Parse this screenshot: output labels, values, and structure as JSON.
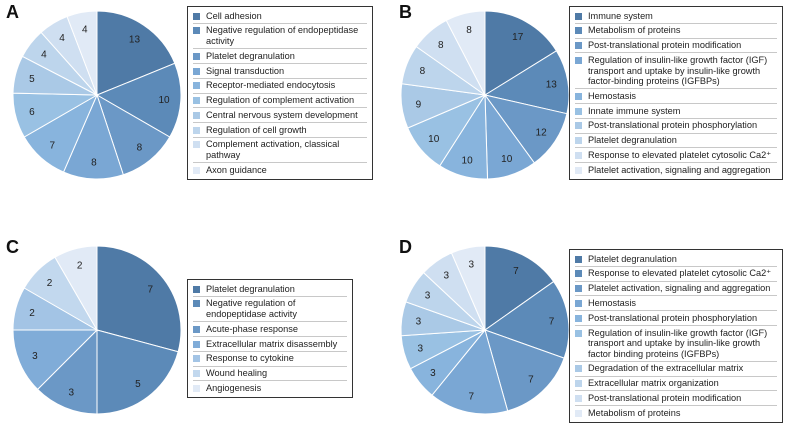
{
  "chart_data": [
    {
      "type": "pie",
      "panel": "A",
      "categories": [
        "Cell adhesion",
        "Negative regulation of endopeptidase activity",
        "Platelet degranulation",
        "Signal transduction",
        "Receptor-mediated endocytosis",
        "Regulation of complement activation",
        "Central nervous system development",
        "Regulation of cell growth",
        "Complement activation, classical pathway",
        "Axon guidance"
      ],
      "values": [
        13,
        10,
        8,
        8,
        7,
        6,
        5,
        4,
        4,
        4
      ],
      "colors": [
        "#4f7aa6",
        "#5c8ab8",
        "#6b98c6",
        "#7aa7d4",
        "#88b4dd",
        "#99c1e3",
        "#aac9e6",
        "#bdd5ec",
        "#cfdff1",
        "#e1eaf6"
      ]
    },
    {
      "type": "pie",
      "panel": "B",
      "categories": [
        "Immune system",
        "Metabolism of proteins",
        "Post-translational protein modification",
        "Regulation of insulin-like growth factor (IGF) transport and uptake by insulin-like growth factor-binding proteins (IGFBPs)",
        "Hemostasis",
        "Innate immune system",
        "Post-translational protein phosphorylation",
        "Platelet degranulation",
        "Response to elevated platelet cytosolic Ca2⁺",
        "Platelet activation, signaling and aggregation"
      ],
      "values": [
        17,
        13,
        12,
        10,
        10,
        10,
        9,
        8,
        8,
        8
      ],
      "colors": [
        "#4f7aa6",
        "#5c8ab8",
        "#6b98c6",
        "#7aa7d4",
        "#88b4dd",
        "#99c1e3",
        "#aac9e6",
        "#bdd5ec",
        "#cfdff1",
        "#e1eaf6"
      ]
    },
    {
      "type": "pie",
      "panel": "C",
      "categories": [
        "Platelet degranulation",
        "Negative regulation of endopeptidase activity",
        "Acute-phase response",
        "Extracellular matrix disassembly",
        "Response to cytokine",
        "Wound healing",
        "Angiogenesis"
      ],
      "values": [
        7,
        5,
        3,
        3,
        2,
        2,
        2
      ],
      "colors": [
        "#4f7aa6",
        "#5c8ab8",
        "#6b98c6",
        "#80acd8",
        "#a3c4e5",
        "#c2d8ee",
        "#e1eaf6"
      ]
    },
    {
      "type": "pie",
      "panel": "D",
      "categories": [
        "Platelet degranulation",
        "Response to elevated platelet cytosolic Ca2⁺",
        "Platelet activation, signaling and aggregation",
        "Hemostasis",
        "Post-translational protein phosphorylation",
        "Regulation of insulin-like growth factor (IGF) transport and uptake by insulin-like growth factor binding proteins (IGFBPs)",
        "Degradation of the extracellular matrix",
        "Extracellular matrix organization",
        "Post-translational protein modification",
        "Metabolism of proteins"
      ],
      "values": [
        7,
        7,
        7,
        7,
        3,
        3,
        3,
        3,
        3,
        3
      ],
      "colors": [
        "#4f7aa6",
        "#5c8ab8",
        "#6b98c6",
        "#7aa7d4",
        "#88b4dd",
        "#99c1e3",
        "#aac9e6",
        "#bdd5ec",
        "#cfdff1",
        "#e1eaf6"
      ]
    }
  ]
}
